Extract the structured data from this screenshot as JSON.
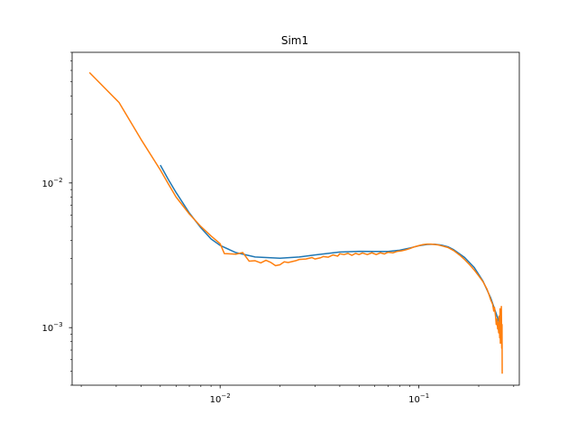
{
  "chart_data": {
    "type": "line",
    "title": "Sim1",
    "xlabel": "",
    "ylabel": "",
    "xscale": "log",
    "yscale": "log",
    "xlim": [
      0.0018,
      0.32
    ],
    "ylim": [
      0.0004,
      0.08
    ],
    "grid": false,
    "x_major_ticks": [
      {
        "value": 0.01,
        "base": "10",
        "exp": "−2"
      },
      {
        "value": 0.1,
        "base": "10",
        "exp": "−1"
      }
    ],
    "y_major_ticks": [
      {
        "value": 0.001,
        "base": "10",
        "exp": "−3"
      },
      {
        "value": 0.01,
        "base": "10",
        "exp": "−2"
      }
    ],
    "series": [
      {
        "color": "#1f77b4",
        "points": [
          [
            0.005,
            0.0133
          ],
          [
            0.0055,
            0.0105
          ],
          [
            0.006,
            0.0086
          ],
          [
            0.007,
            0.0062
          ],
          [
            0.008,
            0.0049
          ],
          [
            0.009,
            0.0041
          ],
          [
            0.01,
            0.0037
          ],
          [
            0.012,
            0.0033
          ],
          [
            0.015,
            0.00308
          ],
          [
            0.02,
            0.00302
          ],
          [
            0.025,
            0.00308
          ],
          [
            0.03,
            0.00318
          ],
          [
            0.04,
            0.00333
          ],
          [
            0.05,
            0.00337
          ],
          [
            0.06,
            0.00336
          ],
          [
            0.07,
            0.00336
          ],
          [
            0.08,
            0.00343
          ],
          [
            0.09,
            0.00355
          ],
          [
            0.1,
            0.00368
          ],
          [
            0.11,
            0.00376
          ],
          [
            0.12,
            0.00377
          ],
          [
            0.13,
            0.00372
          ],
          [
            0.14,
            0.00362
          ],
          [
            0.15,
            0.00345
          ],
          [
            0.17,
            0.00305
          ],
          [
            0.19,
            0.0026
          ],
          [
            0.21,
            0.0021
          ],
          [
            0.23,
            0.0016
          ],
          [
            0.25,
            0.00115
          ],
          [
            0.262,
            0.00085
          ]
        ]
      },
      {
        "color": "#ff7f0e",
        "points": [
          [
            0.0022,
            0.058
          ],
          [
            0.0031,
            0.036
          ],
          [
            0.004,
            0.02
          ],
          [
            0.005,
            0.0123
          ],
          [
            0.0055,
            0.0098
          ],
          [
            0.006,
            0.008
          ],
          [
            0.007,
            0.0061
          ],
          [
            0.008,
            0.005
          ],
          [
            0.009,
            0.0043
          ],
          [
            0.01,
            0.0038
          ],
          [
            0.0105,
            0.00325
          ],
          [
            0.012,
            0.00322
          ],
          [
            0.013,
            0.0033
          ],
          [
            0.014,
            0.00288
          ],
          [
            0.015,
            0.0029
          ],
          [
            0.016,
            0.0028
          ],
          [
            0.017,
            0.00292
          ],
          [
            0.018,
            0.00282
          ],
          [
            0.019,
            0.00268
          ],
          [
            0.02,
            0.00272
          ],
          [
            0.021,
            0.00285
          ],
          [
            0.022,
            0.00282
          ],
          [
            0.024,
            0.0029
          ],
          [
            0.025,
            0.00296
          ],
          [
            0.027,
            0.00298
          ],
          [
            0.029,
            0.00305
          ],
          [
            0.03,
            0.00298
          ],
          [
            0.032,
            0.00304
          ],
          [
            0.033,
            0.0031
          ],
          [
            0.035,
            0.00307
          ],
          [
            0.037,
            0.00318
          ],
          [
            0.039,
            0.00312
          ],
          [
            0.04,
            0.00324
          ],
          [
            0.042,
            0.0032
          ],
          [
            0.044,
            0.00326
          ],
          [
            0.046,
            0.00316
          ],
          [
            0.048,
            0.00326
          ],
          [
            0.05,
            0.0032
          ],
          [
            0.052,
            0.00328
          ],
          [
            0.055,
            0.0032
          ],
          [
            0.058,
            0.00329
          ],
          [
            0.061,
            0.0032
          ],
          [
            0.064,
            0.00329
          ],
          [
            0.067,
            0.00323
          ],
          [
            0.07,
            0.00332
          ],
          [
            0.074,
            0.00329
          ],
          [
            0.078,
            0.00337
          ],
          [
            0.082,
            0.0034
          ],
          [
            0.086,
            0.00345
          ],
          [
            0.09,
            0.00352
          ],
          [
            0.095,
            0.00362
          ],
          [
            0.1,
            0.00369
          ],
          [
            0.105,
            0.00375
          ],
          [
            0.11,
            0.00378
          ],
          [
            0.115,
            0.00378
          ],
          [
            0.12,
            0.00376
          ],
          [
            0.125,
            0.00373
          ],
          [
            0.13,
            0.00368
          ],
          [
            0.14,
            0.00358
          ],
          [
            0.15,
            0.0034
          ],
          [
            0.16,
            0.00318
          ],
          [
            0.17,
            0.00295
          ],
          [
            0.18,
            0.00272
          ],
          [
            0.19,
            0.0025
          ],
          [
            0.2,
            0.00228
          ],
          [
            0.21,
            0.00208
          ],
          [
            0.22,
            0.00185
          ],
          [
            0.225,
            0.0017
          ],
          [
            0.23,
            0.00155
          ],
          [
            0.235,
            0.00145
          ],
          [
            0.238,
            0.0013
          ],
          [
            0.24,
            0.00138
          ],
          [
            0.243,
            0.0012
          ],
          [
            0.245,
            0.00105
          ],
          [
            0.247,
            0.00115
          ],
          [
            0.249,
            0.00098
          ],
          [
            0.25,
            0.00108
          ],
          [
            0.252,
            0.00092
          ],
          [
            0.253,
            0.0012
          ],
          [
            0.255,
            0.00085
          ],
          [
            0.256,
            0.00135
          ],
          [
            0.257,
            0.00078
          ],
          [
            0.258,
            0.00112
          ],
          [
            0.259,
            0.0009
          ],
          [
            0.26,
            0.0014
          ],
          [
            0.261,
            0.00072
          ],
          [
            0.262,
            0.00105
          ],
          [
            0.2625,
            0.00048
          ]
        ]
      }
    ]
  }
}
